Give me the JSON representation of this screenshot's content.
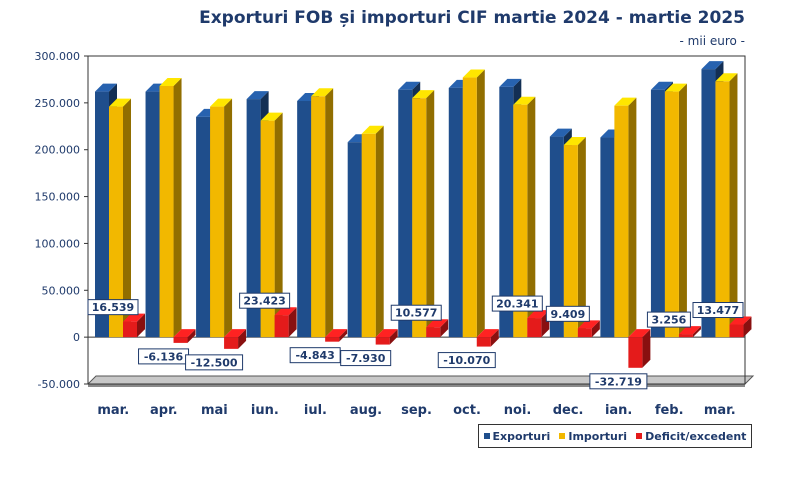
{
  "chart_data": {
    "type": "bar",
    "title": "Exporturi FOB și importuri CIF martie 2024 - martie 2025",
    "subtitle": "- mii euro -",
    "categories": [
      "mar.",
      "apr.",
      "mai",
      "iun.",
      "iul.",
      "aug.",
      "sep.",
      "oct.",
      "noi.",
      "dec.",
      "ian.",
      "feb.",
      "mar."
    ],
    "series": [
      {
        "name": "Exporturi",
        "color": "#1f4e8c",
        "values": [
          262000,
          262000,
          235000,
          254000,
          252000,
          208000,
          264000,
          266000,
          267000,
          214000,
          213000,
          264000,
          286000
        ]
      },
      {
        "name": "Importuri",
        "color": "#f2b800",
        "values": [
          246000,
          268000,
          246000,
          231000,
          257000,
          217000,
          255000,
          277000,
          248000,
          205000,
          247000,
          262000,
          273000
        ]
      },
      {
        "name": "Deficit/excedent",
        "color": "#e41b1b",
        "values": [
          16539,
          -6136,
          -12500,
          23423,
          -4843,
          -7930,
          10577,
          -10070,
          20341,
          9409,
          -32719,
          3256,
          13477
        ]
      }
    ],
    "data_labels": [
      "16.539",
      "-6.136",
      "-12.500",
      "23.423",
      "-4.843",
      "-7.930",
      "10.577",
      "-10.070",
      "20.341",
      "9.409",
      "-32.719",
      "3.256",
      "13.477"
    ],
    "yticks": [
      -50000,
      0,
      50000,
      100000,
      150000,
      200000,
      250000,
      300000
    ],
    "ytick_labels": [
      "-50.000",
      "0",
      "50.000",
      "100.000",
      "150.000",
      "200.000",
      "250.000",
      "300.000"
    ],
    "ylim": [
      -50000,
      300000
    ],
    "grid": false,
    "legend_position": "bottom-right"
  }
}
